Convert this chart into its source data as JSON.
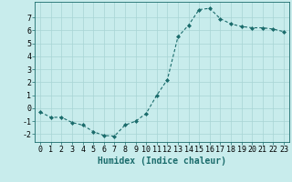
{
  "x": [
    0,
    1,
    2,
    3,
    4,
    5,
    6,
    7,
    8,
    9,
    10,
    11,
    12,
    13,
    14,
    15,
    16,
    17,
    18,
    19,
    20,
    21,
    22,
    23
  ],
  "y": [
    -0.3,
    -0.7,
    -0.7,
    -1.1,
    -1.3,
    -1.8,
    -2.1,
    -2.15,
    -1.3,
    -1.0,
    -0.4,
    1.0,
    2.2,
    5.5,
    6.4,
    7.6,
    7.7,
    6.9,
    6.5,
    6.3,
    6.2,
    6.2,
    6.1,
    5.9
  ],
  "line_color": "#1a6b6b",
  "marker": "D",
  "marker_size": 2,
  "bg_color": "#c8ecec",
  "grid_color": "#a8d4d4",
  "xlabel": "Humidex (Indice chaleur)",
  "xlim": [
    -0.5,
    23.5
  ],
  "ylim": [
    -2.6,
    8.2
  ],
  "yticks": [
    -2,
    -1,
    0,
    1,
    2,
    3,
    4,
    5,
    6,
    7
  ],
  "xticks": [
    0,
    1,
    2,
    3,
    4,
    5,
    6,
    7,
    8,
    9,
    10,
    11,
    12,
    13,
    14,
    15,
    16,
    17,
    18,
    19,
    20,
    21,
    22,
    23
  ],
  "tick_fontsize": 6,
  "xlabel_fontsize": 7
}
